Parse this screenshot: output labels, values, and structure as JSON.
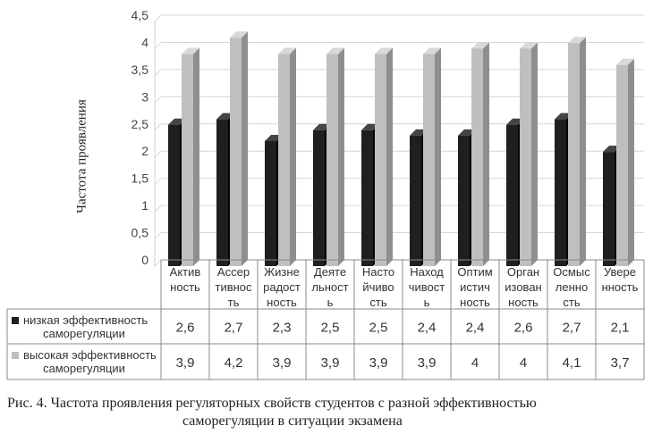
{
  "chart_data": {
    "type": "bar",
    "ylabel": "Частота проявления",
    "ylim": [
      0,
      4.5
    ],
    "yticks": [
      "0",
      "0,5",
      "1",
      "1,5",
      "2",
      "2,5",
      "3",
      "3,5",
      "4",
      "4,5"
    ],
    "categories": [
      [
        "Актив",
        "ность"
      ],
      [
        "Ассер",
        "тивнос",
        "ть"
      ],
      [
        "Жизне",
        "радост",
        "ность"
      ],
      [
        "Деяте",
        "льност",
        "ь"
      ],
      [
        "Насто",
        "йчиво",
        "сть"
      ],
      [
        "Наход",
        "чивост",
        "ь"
      ],
      [
        "Оптим",
        "истич",
        "ность"
      ],
      [
        "Орган",
        "изован",
        "ность"
      ],
      [
        "Осмыс",
        "ленно",
        "сть"
      ],
      [
        "Увере",
        "нность"
      ]
    ],
    "series": [
      {
        "name": [
          "низкая эффективность",
          "саморегуляции"
        ],
        "color": "#1f1f1f",
        "values": [
          2.6,
          2.7,
          2.3,
          2.5,
          2.5,
          2.4,
          2.4,
          2.6,
          2.7,
          2.1
        ],
        "labels": [
          "2,6",
          "2,7",
          "2,3",
          "2,5",
          "2,5",
          "2,4",
          "2,4",
          "2,6",
          "2,7",
          "2,1"
        ]
      },
      {
        "name": [
          "высокая эффективность",
          "саморегуляции"
        ],
        "color": "#bfbfbf",
        "values": [
          3.9,
          4.2,
          3.9,
          3.9,
          3.9,
          3.9,
          4.0,
          4.0,
          4.1,
          3.7
        ],
        "labels": [
          "3,9",
          "4,2",
          "3,9",
          "3,9",
          "3,9",
          "3,9",
          "4",
          "4",
          "4,1",
          "3,7"
        ]
      }
    ],
    "grid": true,
    "legend": "data-table-left"
  },
  "caption": {
    "line1": "Рис. 4. Частота проявления регуляторных свойств студентов с разной эффективностью",
    "line2": "саморегуляции в ситуации экзамена"
  }
}
